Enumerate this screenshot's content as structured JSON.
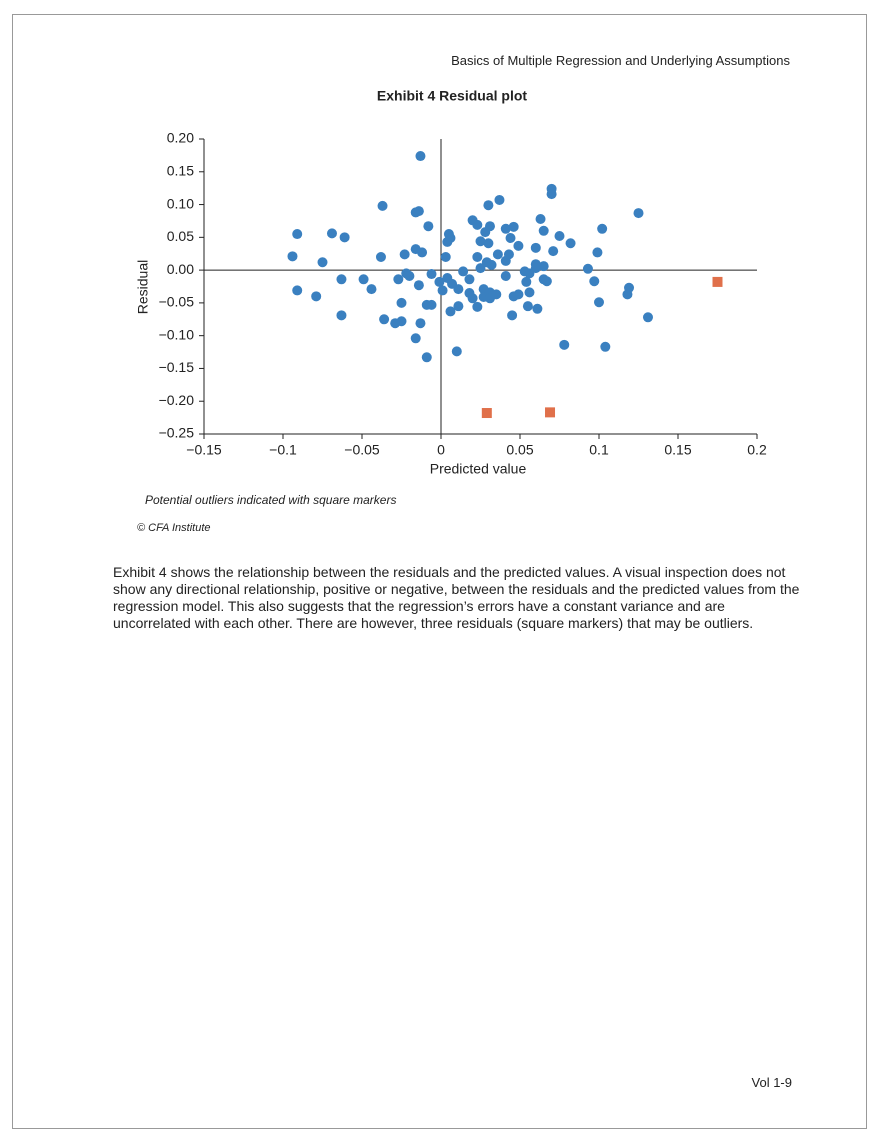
{
  "header": "Basics of Multiple Regression and Underlying Assumptions",
  "chart_data": {
    "type": "scatter",
    "title": "Exhibit 4  Residual plot",
    "xlabel": "Predicted value",
    "ylabel": "Residual",
    "xlim": [
      -0.15,
      0.2
    ],
    "ylim": [
      -0.25,
      0.2
    ],
    "xticks": [
      {
        "value": -0.15,
        "label": "−0.15"
      },
      {
        "value": -0.1,
        "label": "−0.1"
      },
      {
        "value": -0.05,
        "label": "−0.05"
      },
      0,
      0.05,
      0.1,
      0.15,
      0.2
    ],
    "yticks": [
      {
        "value": 0.2,
        "label": "0.20"
      },
      0.15,
      {
        "value": 0.1,
        "label": "0.10"
      },
      0.05,
      {
        "value": 0,
        "label": "0.00"
      },
      {
        "value": -0.05,
        "label": "−0.05"
      },
      {
        "value": -0.1,
        "label": "−0.10"
      },
      {
        "value": -0.15,
        "label": "−0.15"
      },
      {
        "value": -0.2,
        "label": "−0.20"
      },
      {
        "value": -0.25,
        "label": "−0.25"
      }
    ],
    "zero_lines": true,
    "series": [
      {
        "color": "#3a80c0",
        "marker": "circle",
        "x": [
          -0.094,
          -0.091,
          -0.091,
          -0.079,
          -0.075,
          -0.069,
          -0.061,
          -0.063,
          -0.063,
          -0.049,
          -0.044,
          -0.037,
          -0.038,
          -0.036,
          -0.029,
          -0.025,
          -0.025,
          -0.027,
          -0.023,
          -0.022,
          -0.02,
          -0.016,
          -0.014,
          -0.016,
          -0.012,
          -0.014,
          -0.013,
          -0.008,
          -0.013,
          -0.016,
          -0.009,
          -0.009,
          -0.006,
          -0.006,
          -0.001,
          0.001,
          0.003,
          0.004,
          0.005,
          0.006,
          0.004,
          0.007,
          0.006,
          0.011,
          0.011,
          0.01,
          0.014,
          0.018,
          0.018,
          0.02,
          0.02,
          0.023,
          0.023,
          0.023,
          0.025,
          0.025,
          0.027,
          0.027,
          0.028,
          0.029,
          0.03,
          0.03,
          0.031,
          0.031,
          0.032,
          0.031,
          0.035,
          0.036,
          0.037,
          0.041,
          0.041,
          0.043,
          0.041,
          0.044,
          0.046,
          0.046,
          0.045,
          0.049,
          0.049,
          0.053,
          0.054,
          0.056,
          0.055,
          0.056,
          0.06,
          0.06,
          0.06,
          0.061,
          0.063,
          0.065,
          0.065,
          0.065,
          0.067,
          0.07,
          0.07,
          0.071,
          0.075,
          0.078,
          0.082,
          0.093,
          0.097,
          0.099,
          0.1,
          0.102,
          0.104,
          0.118,
          0.119,
          0.125,
          0.131
        ],
        "values": [
          0.021,
          0.055,
          -0.031,
          -0.04,
          0.012,
          0.056,
          0.05,
          -0.014,
          -0.069,
          -0.014,
          -0.029,
          0.098,
          0.02,
          -0.075,
          -0.081,
          -0.078,
          -0.05,
          -0.014,
          0.024,
          -0.005,
          -0.009,
          0.088,
          0.09,
          0.032,
          0.027,
          -0.023,
          0.174,
          0.067,
          -0.081,
          -0.104,
          -0.133,
          -0.053,
          -0.053,
          -0.006,
          -0.018,
          -0.031,
          0.02,
          0.043,
          0.055,
          0.049,
          -0.012,
          -0.021,
          -0.063,
          -0.029,
          -0.055,
          -0.124,
          -0.002,
          -0.014,
          -0.035,
          -0.043,
          0.076,
          0.069,
          0.02,
          -0.056,
          0.044,
          0.003,
          -0.029,
          -0.041,
          0.058,
          0.012,
          0.041,
          0.099,
          0.067,
          -0.034,
          0.008,
          -0.043,
          -0.037,
          0.024,
          0.107,
          0.014,
          0.063,
          0.024,
          -0.009,
          0.049,
          0.066,
          -0.04,
          -0.069,
          0.037,
          -0.037,
          -0.002,
          -0.018,
          -0.005,
          -0.055,
          -0.034,
          0.034,
          0.003,
          0.009,
          -0.059,
          0.078,
          0.06,
          0.006,
          -0.014,
          -0.017,
          0.124,
          0.116,
          0.029,
          0.052,
          -0.114,
          0.041,
          0.002,
          -0.017,
          0.027,
          -0.049,
          0.063,
          -0.117,
          -0.037,
          -0.027,
          0.087,
          -0.072
        ]
      },
      {
        "color": "#e0704a",
        "marker": "square",
        "x": [
          0.175,
          0.029,
          0.069
        ],
        "values": [
          -0.018,
          -0.218,
          -0.217
        ]
      }
    ]
  },
  "note": "Potential outliers indicated with square markers",
  "source": "© CFA Institute",
  "paragraph": "Exhibit 4 shows the relationship between the residuals and the predicted values. A visual inspection does not show any directional relationship, positive or negative, between the residuals and the predicted values from the regression model. This also suggests that the regression’s errors have a constant variance and are uncorrelated with each other. There are however, three residuals (square markers) that may be outliers.",
  "footer": "Vol 1-9"
}
